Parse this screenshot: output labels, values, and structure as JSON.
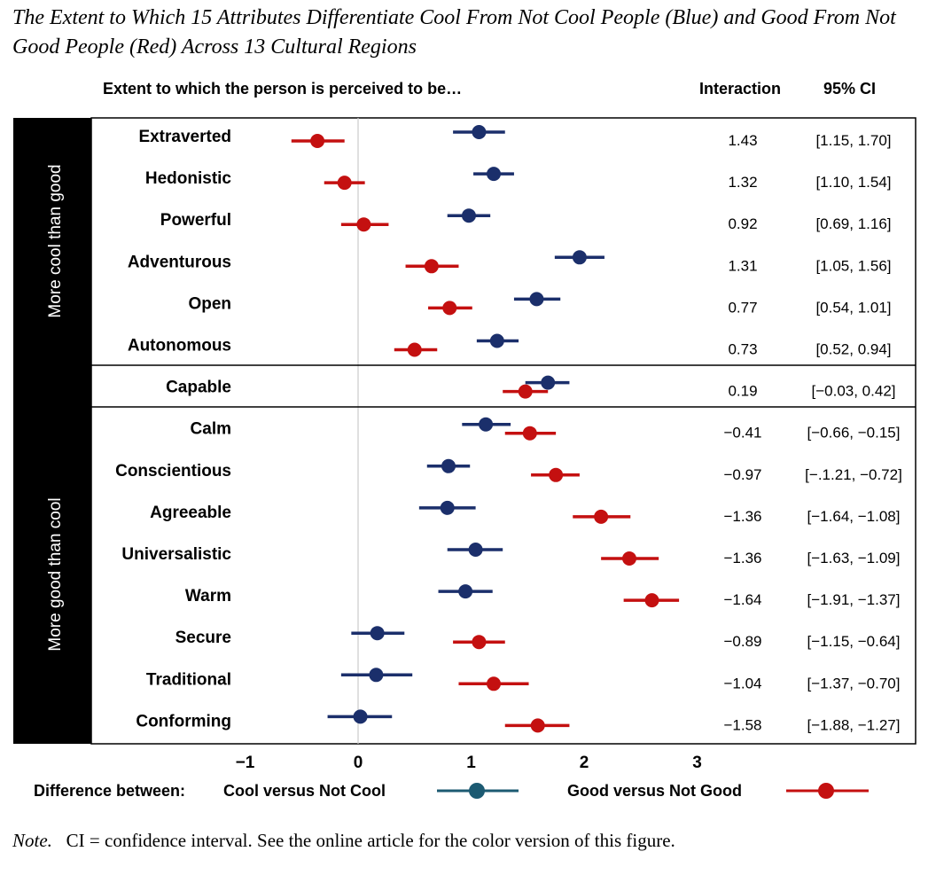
{
  "title": "The Extent to Which 15 Attributes Differentiate Cool From Not Cool People (Blue) and Good From Not Good People (Red) Across 13 Cultural Regions",
  "header": {
    "extent_label": "Extent to which the person is perceived to be…",
    "interaction_label": "Interaction",
    "ci_label": "95% CI"
  },
  "sections": {
    "cool_label": "More cool than good",
    "good_label": "More good than cool"
  },
  "legend": {
    "prefix": "Difference between:",
    "cool": "Cool versus Not Cool",
    "good": "Good versus Not Good"
  },
  "note": {
    "label": "Note.",
    "text": "CI = confidence interval. See the online article for the color version of this figure."
  },
  "colors": {
    "cool": "#1b2f6b",
    "good": "#c41010"
  },
  "chart_data": {
    "type": "forest",
    "x_range": [
      -1.2,
      3.4
    ],
    "x_ticks": [
      -1,
      0,
      1,
      2,
      3
    ],
    "x_tick_labels": [
      "−1",
      "0",
      "1",
      "2",
      "3"
    ],
    "series": [
      {
        "name": "Cool versus Not Cool",
        "color": "#1b2f6b"
      },
      {
        "name": "Good versus Not Good",
        "color": "#c41010"
      }
    ],
    "rows": [
      {
        "label": "Extraverted",
        "group": "cool",
        "cool": {
          "est": 1.07,
          "lo": 0.84,
          "hi": 1.3
        },
        "good": {
          "est": -0.36,
          "lo": -0.59,
          "hi": -0.12
        },
        "interaction": "1.43",
        "ci": "[1.15, 1.70]"
      },
      {
        "label": "Hedonistic",
        "group": "cool",
        "cool": {
          "est": 1.2,
          "lo": 1.02,
          "hi": 1.38
        },
        "good": {
          "est": -0.12,
          "lo": -0.3,
          "hi": 0.06
        },
        "interaction": "1.32",
        "ci": "[1.10, 1.54]"
      },
      {
        "label": "Powerful",
        "group": "cool",
        "cool": {
          "est": 0.98,
          "lo": 0.79,
          "hi": 1.17
        },
        "good": {
          "est": 0.05,
          "lo": -0.15,
          "hi": 0.27
        },
        "interaction": "0.92",
        "ci": "[0.69, 1.16]"
      },
      {
        "label": "Adventurous",
        "group": "cool",
        "cool": {
          "est": 1.96,
          "lo": 1.74,
          "hi": 2.18
        },
        "good": {
          "est": 0.65,
          "lo": 0.42,
          "hi": 0.89
        },
        "interaction": "1.31",
        "ci": "[1.05, 1.56]"
      },
      {
        "label": "Open",
        "group": "cool",
        "cool": {
          "est": 1.58,
          "lo": 1.38,
          "hi": 1.79
        },
        "good": {
          "est": 0.81,
          "lo": 0.62,
          "hi": 1.01
        },
        "interaction": "0.77",
        "ci": "[0.54, 1.01]"
      },
      {
        "label": "Autonomous",
        "group": "cool",
        "cool": {
          "est": 1.23,
          "lo": 1.05,
          "hi": 1.42
        },
        "good": {
          "est": 0.5,
          "lo": 0.32,
          "hi": 0.7
        },
        "interaction": "0.73",
        "ci": "[0.52, 0.94]"
      },
      {
        "label": "Capable",
        "group": "neutral",
        "cool": {
          "est": 1.68,
          "lo": 1.48,
          "hi": 1.87
        },
        "good": {
          "est": 1.48,
          "lo": 1.28,
          "hi": 1.68
        },
        "interaction": "0.19",
        "ci": "[−0.03, 0.42]"
      },
      {
        "label": "Calm",
        "group": "good",
        "cool": {
          "est": 1.13,
          "lo": 0.92,
          "hi": 1.35
        },
        "good": {
          "est": 1.52,
          "lo": 1.3,
          "hi": 1.75
        },
        "interaction": "−0.41",
        "ci": "[−0.66, −0.15]"
      },
      {
        "label": "Conscientious",
        "group": "good",
        "cool": {
          "est": 0.8,
          "lo": 0.61,
          "hi": 0.99
        },
        "good": {
          "est": 1.75,
          "lo": 1.53,
          "hi": 1.96
        },
        "interaction": "−0.97",
        "ci": "[−.1.21, −0.72]"
      },
      {
        "label": "Agreeable",
        "group": "good",
        "cool": {
          "est": 0.79,
          "lo": 0.54,
          "hi": 1.04
        },
        "good": {
          "est": 2.15,
          "lo": 1.9,
          "hi": 2.41
        },
        "interaction": "−1.36",
        "ci": "[−1.64, −1.08]"
      },
      {
        "label": "Universalistic",
        "group": "good",
        "cool": {
          "est": 1.04,
          "lo": 0.79,
          "hi": 1.28
        },
        "good": {
          "est": 2.4,
          "lo": 2.15,
          "hi": 2.66
        },
        "interaction": "−1.36",
        "ci": "[−1.63, −1.09]"
      },
      {
        "label": "Warm",
        "group": "good",
        "cool": {
          "est": 0.95,
          "lo": 0.71,
          "hi": 1.19
        },
        "good": {
          "est": 2.6,
          "lo": 2.35,
          "hi": 2.84
        },
        "interaction": "−1.64",
        "ci": "[−1.91, −1.37]"
      },
      {
        "label": "Secure",
        "group": "good",
        "cool": {
          "est": 0.17,
          "lo": -0.06,
          "hi": 0.41
        },
        "good": {
          "est": 1.07,
          "lo": 0.84,
          "hi": 1.3
        },
        "interaction": "−0.89",
        "ci": "[−1.15, −0.64]"
      },
      {
        "label": "Traditional",
        "group": "good",
        "cool": {
          "est": 0.16,
          "lo": -0.15,
          "hi": 0.48
        },
        "good": {
          "est": 1.2,
          "lo": 0.89,
          "hi": 1.51
        },
        "interaction": "−1.04",
        "ci": "[−1.37, −0.70]"
      },
      {
        "label": "Conforming",
        "group": "good",
        "cool": {
          "est": 0.02,
          "lo": -0.27,
          "hi": 0.3
        },
        "good": {
          "est": 1.59,
          "lo": 1.3,
          "hi": 1.87
        },
        "interaction": "−1.58",
        "ci": "[−1.88, −1.27]"
      }
    ]
  }
}
